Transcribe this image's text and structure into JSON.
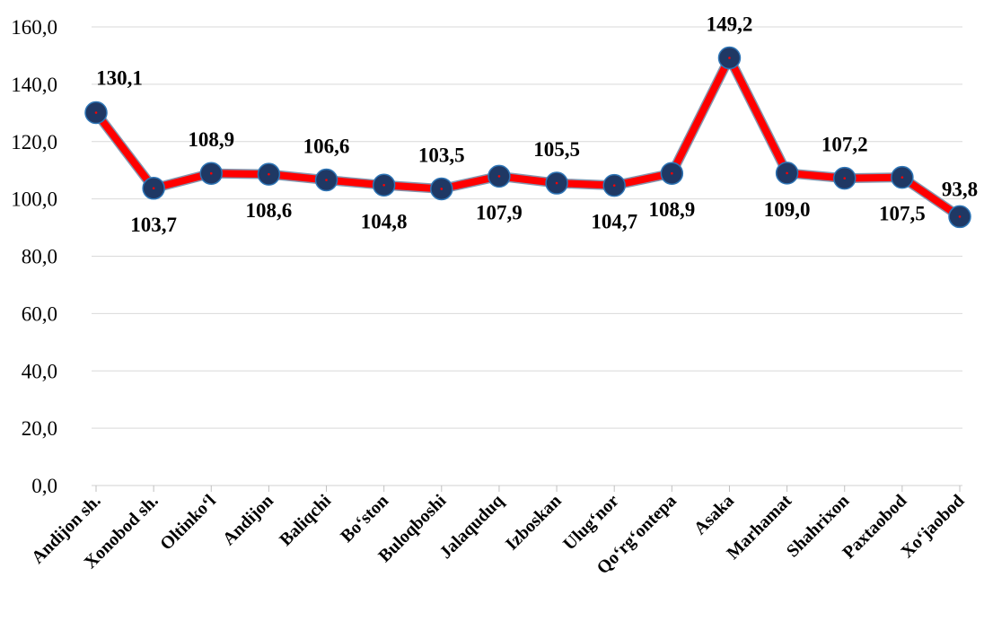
{
  "chart_data": {
    "type": "line",
    "categories": [
      "Andijon sh.",
      "Xonobod sh.",
      "Oltinko‘l",
      "Andijon",
      "Baliqchi",
      "Bo‘ston",
      "Buloqboshi",
      "Jalaquduq",
      "Izboskan",
      "Ulug‘nor",
      "Qo‘rg‘ontepa",
      "Asaka",
      "Marhamat",
      "Shahrixon",
      "Paxtaobod",
      "Xo‘jaobod"
    ],
    "series": [
      {
        "values": [
          130.1,
          103.7,
          108.9,
          108.6,
          106.6,
          104.8,
          103.5,
          107.9,
          105.5,
          104.7,
          108.9,
          149.2,
          109.0,
          107.2,
          107.5,
          93.8
        ],
        "labels": [
          "130,1",
          "103,7",
          "108,9",
          "108,6",
          "106,6",
          "104,8",
          "103,5",
          "107,9",
          "105,5",
          "104,7",
          "108,9",
          "149,2",
          "109,0",
          "107,2",
          "107,5",
          "93,8"
        ],
        "label_positions": [
          "above",
          "below",
          "above",
          "below",
          "above",
          "below",
          "above",
          "below",
          "above",
          "below",
          "below",
          "above",
          "below",
          "above",
          "below",
          "above"
        ]
      }
    ],
    "yticks": [
      "0,0",
      "20,0",
      "40,0",
      "60,0",
      "80,0",
      "100,0",
      "120,0",
      "140,0",
      "160,0"
    ],
    "ylim": [
      0,
      160
    ],
    "ystep": 20,
    "grid": true,
    "colors": {
      "line": "#ff0000",
      "marker": "#1f3864",
      "grid": "#d9d9d9"
    }
  }
}
